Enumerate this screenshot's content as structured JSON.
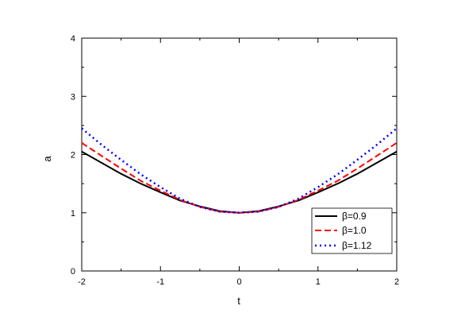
{
  "chart_data": {
    "type": "line",
    "title": "",
    "xlabel": "t",
    "ylabel": "a",
    "xlim": [
      -2,
      2
    ],
    "ylim": [
      0,
      4
    ],
    "xticks": [
      -2,
      -1,
      0,
      1,
      2
    ],
    "yticks": [
      0,
      1,
      2,
      3,
      4
    ],
    "xtick_labels": [
      "-2",
      "-1",
      "0",
      "1",
      "2"
    ],
    "ytick_labels": [
      "0",
      "1",
      "2",
      "3",
      "4"
    ],
    "grid": false,
    "legend_position": "lower-right",
    "x": [
      -2.0,
      -1.75,
      -1.5,
      -1.25,
      -1.0,
      -0.75,
      -0.5,
      -0.25,
      0.0,
      0.25,
      0.5,
      0.75,
      1.0,
      1.25,
      1.5,
      1.75,
      2.0
    ],
    "series": [
      {
        "name": "β=0.9",
        "color": "#000000",
        "style": "solid",
        "values": [
          2.05,
          1.86,
          1.67,
          1.5,
          1.35,
          1.21,
          1.11,
          1.03,
          1.0,
          1.03,
          1.11,
          1.21,
          1.35,
          1.5,
          1.67,
          1.86,
          2.05
        ]
      },
      {
        "name": "β=1.0",
        "color": "#ff0000",
        "style": "dashed",
        "values": [
          2.2,
          1.98,
          1.76,
          1.55,
          1.38,
          1.22,
          1.1,
          1.02,
          1.0,
          1.02,
          1.1,
          1.22,
          1.38,
          1.55,
          1.76,
          1.98,
          2.2
        ]
      },
      {
        "name": "β=1.12",
        "color": "#0000ff",
        "style": "dotted",
        "values": [
          2.45,
          2.17,
          1.91,
          1.66,
          1.44,
          1.24,
          1.1,
          1.02,
          1.0,
          1.02,
          1.1,
          1.24,
          1.44,
          1.66,
          1.91,
          2.17,
          2.45
        ]
      }
    ]
  }
}
